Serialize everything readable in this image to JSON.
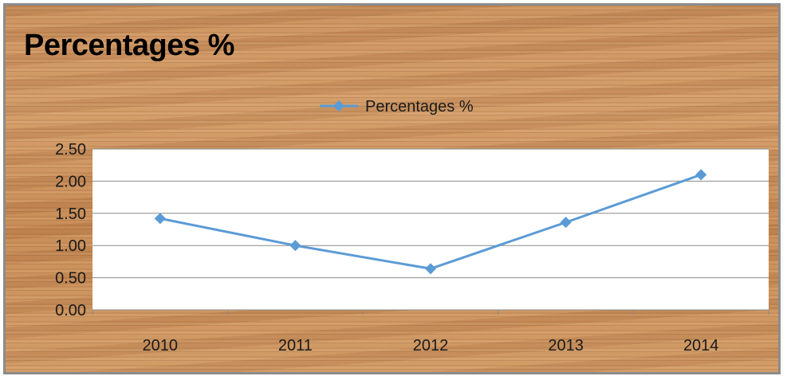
{
  "chart_data": {
    "type": "line",
    "title": "Percentages %",
    "categories": [
      "2010",
      "2011",
      "2012",
      "2013",
      "2014"
    ],
    "series": [
      {
        "name": "Percentages %",
        "values": [
          1.42,
          1.0,
          0.64,
          1.36,
          2.1
        ],
        "color": "#5b9bd5"
      }
    ],
    "ylim": [
      0,
      2.5
    ],
    "yticks": [
      "0.00",
      "0.50",
      "1.00",
      "1.50",
      "2.00",
      "2.50"
    ],
    "grid": true,
    "legend": "top-center",
    "xlabel": "",
    "ylabel": ""
  }
}
